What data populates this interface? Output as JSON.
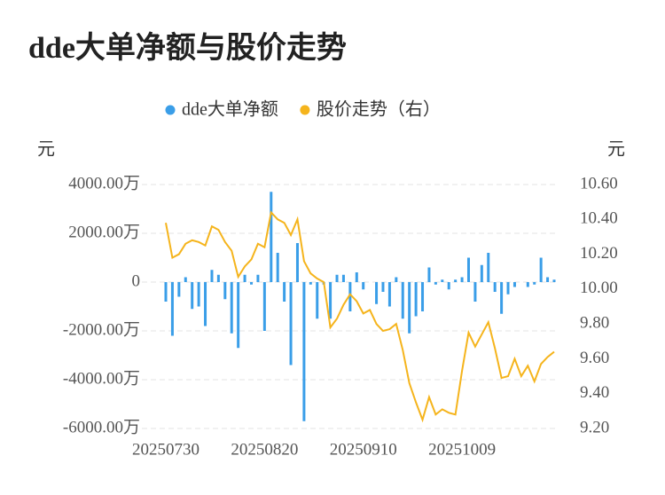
{
  "chart_data": {
    "type": "bar-line",
    "title": "dde大单净额与股价走势",
    "y_label": "元",
    "y2_label": "元",
    "categories": [
      "20250730",
      null,
      null,
      null,
      null,
      null,
      null,
      null,
      null,
      null,
      null,
      null,
      null,
      null,
      null,
      "20250820",
      null,
      null,
      null,
      null,
      null,
      null,
      null,
      null,
      null,
      null,
      null,
      null,
      null,
      null,
      "20250910",
      null,
      null,
      null,
      null,
      null,
      null,
      null,
      null,
      null,
      null,
      null,
      null,
      null,
      null,
      "20251009",
      null,
      null,
      null,
      null,
      null,
      null,
      null,
      null,
      null,
      null,
      null,
      null,
      null,
      null
    ],
    "series": [
      {
        "name": "dde大单净额",
        "type": "bar",
        "color": "#3a9ee8",
        "values": [
          -800,
          -2200,
          -600,
          200,
          -1100,
          -1000,
          -1800,
          500,
          300,
          -700,
          -2100,
          -2700,
          300,
          -100,
          300,
          -2000,
          3700,
          1200,
          -800,
          -3400,
          1600,
          -5700,
          -100,
          -1500,
          -100,
          -1500,
          300,
          300,
          -1200,
          400,
          -300,
          0,
          -900,
          -400,
          -1000,
          200,
          -1500,
          -2100,
          -1400,
          -1200,
          600,
          -100,
          100,
          -300,
          100,
          200,
          1000,
          -800,
          700,
          1200,
          -400,
          -1300,
          -500,
          -200,
          0,
          -200,
          -100,
          1000,
          200,
          100
        ]
      },
      {
        "name": "股价走势（右）",
        "type": "line",
        "axis": "y2",
        "color": "#f5b41c",
        "values": [
          10.38,
          10.18,
          10.2,
          10.26,
          10.28,
          10.27,
          10.25,
          10.36,
          10.34,
          10.27,
          10.22,
          10.07,
          10.13,
          10.17,
          10.26,
          10.24,
          10.44,
          10.4,
          10.38,
          10.31,
          10.4,
          10.16,
          10.09,
          10.06,
          10.04,
          9.78,
          9.83,
          9.91,
          9.97,
          9.93,
          9.86,
          9.88,
          9.8,
          9.76,
          9.77,
          9.8,
          9.65,
          9.46,
          9.35,
          9.25,
          9.38,
          9.28,
          9.31,
          9.29,
          9.28,
          9.53,
          9.75,
          9.67,
          9.74,
          9.81,
          9.66,
          9.49,
          9.5,
          9.6,
          9.5,
          9.56,
          9.47,
          9.57,
          9.61,
          9.64
        ]
      }
    ],
    "ylim": [
      -6000,
      4000
    ],
    "yticks": [
      {
        "value": -6000,
        "label": "-6000.00万"
      },
      {
        "value": -4000,
        "label": "-4000.00万"
      },
      {
        "value": -2000,
        "label": "-2000.00万"
      },
      0,
      {
        "value": 2000,
        "label": "2000.00万"
      },
      {
        "value": 4000,
        "label": "4000.00万"
      }
    ],
    "y2lim": [
      9.2,
      10.6
    ],
    "y2ticks": [
      {
        "value": 9.2,
        "label": "9.20"
      },
      {
        "value": 9.4,
        "label": "9.40"
      },
      {
        "value": 9.6,
        "label": "9.60"
      },
      {
        "value": 9.8,
        "label": "9.80"
      },
      {
        "value": 10.0,
        "label": "10.00"
      },
      {
        "value": 10.2,
        "label": "10.20"
      },
      {
        "value": 10.4,
        "label": "10.40"
      },
      {
        "value": 10.6,
        "label": "10.60"
      }
    ],
    "grid": true,
    "legend": "top"
  }
}
